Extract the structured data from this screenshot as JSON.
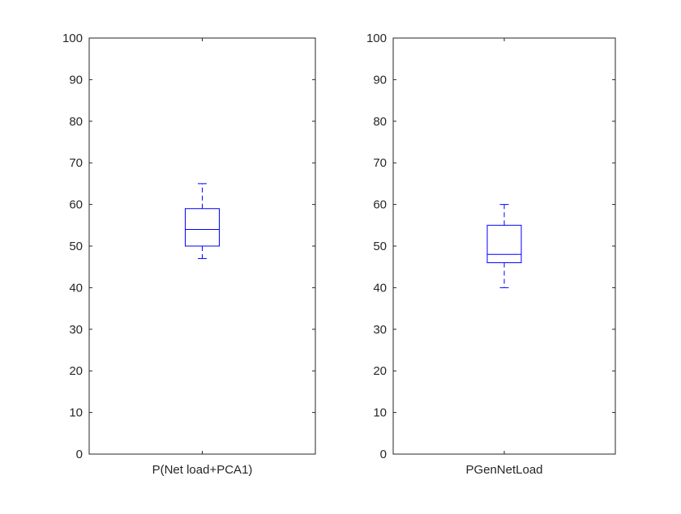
{
  "chart_data": [
    {
      "type": "box",
      "categories": [
        "P(Net load+PCA1)"
      ],
      "ylim": [
        0,
        100
      ],
      "yticks": [
        0,
        10,
        20,
        30,
        40,
        50,
        60,
        70,
        80,
        90,
        100
      ],
      "grid": false,
      "box": {
        "whisker_low": 47,
        "q1": 50,
        "median": 54,
        "q3": 59,
        "whisker_high": 65
      },
      "color": "#0000ff"
    },
    {
      "type": "box",
      "categories": [
        "PGenNetLoad"
      ],
      "ylim": [
        0,
        100
      ],
      "yticks": [
        0,
        10,
        20,
        30,
        40,
        50,
        60,
        70,
        80,
        90,
        100
      ],
      "grid": false,
      "box": {
        "whisker_low": 40,
        "q1": 46,
        "median": 48,
        "q3": 55,
        "whisker_high": 60
      },
      "color": "#0000ff"
    }
  ]
}
